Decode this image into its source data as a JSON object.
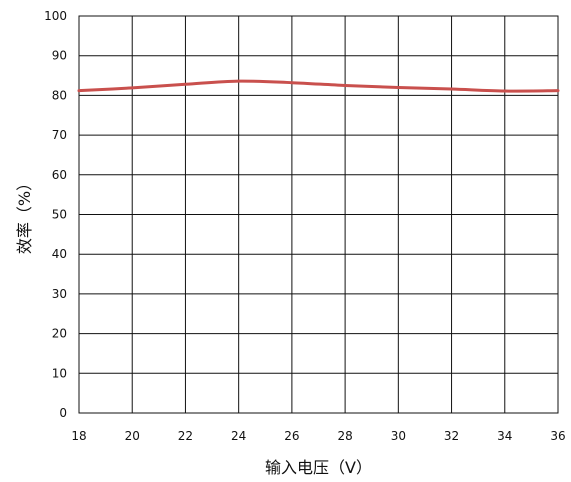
{
  "chart_data": {
    "type": "line",
    "title": "",
    "xlabel": "输入电压（V）",
    "ylabel": "效率（%）",
    "xlim": [
      18,
      36
    ],
    "ylim": [
      0,
      100
    ],
    "x_ticks": [
      18,
      20,
      22,
      24,
      26,
      28,
      30,
      32,
      34,
      36
    ],
    "y_ticks": [
      0,
      10,
      20,
      30,
      40,
      50,
      60,
      70,
      80,
      90,
      100
    ],
    "grid": true,
    "legend": "none",
    "series": [
      {
        "name": "",
        "color": "#c9504d",
        "x": [
          18,
          20,
          22,
          24,
          26,
          28,
          30,
          32,
          34,
          36
        ],
        "y": [
          81.2,
          81.9,
          82.8,
          83.6,
          83.2,
          82.5,
          82.0,
          81.6,
          81.1,
          81.2
        ]
      }
    ]
  }
}
